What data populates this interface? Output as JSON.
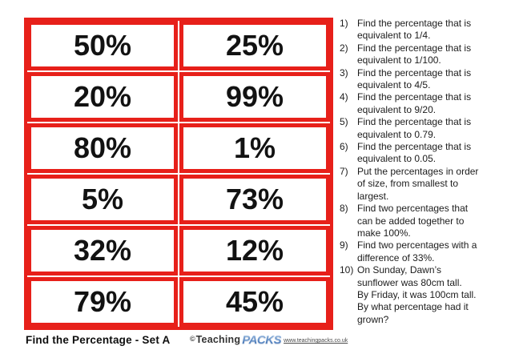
{
  "colors": {
    "card_border": "#e7201a",
    "card_text": "#121212",
    "logo_blue": "#3b6fb5"
  },
  "cards": {
    "labels": [
      "50%",
      "25%",
      "20%",
      "99%",
      "80%",
      "1%",
      "5%",
      "73%",
      "32%",
      "12%",
      "79%",
      "45%"
    ]
  },
  "questions": [
    {
      "num": "1)",
      "lines": [
        "Find the percentage that is",
        "equivalent to 1/4."
      ]
    },
    {
      "num": "2)",
      "lines": [
        "Find the percentage that is",
        "equivalent to 1/100."
      ]
    },
    {
      "num": "3)",
      "lines": [
        "Find the percentage that is",
        "equivalent to 4/5."
      ]
    },
    {
      "num": "4)",
      "lines": [
        "Find the percentage that is",
        "equivalent to 9/20."
      ]
    },
    {
      "num": "5)",
      "lines": [
        "Find the percentage that is",
        "equivalent to 0.79."
      ]
    },
    {
      "num": "6)",
      "lines": [
        "Find the percentage that is",
        "equivalent to 0.05."
      ]
    },
    {
      "num": "7)",
      "lines": [
        "Put the percentages in order",
        "of size, from smallest to",
        "largest."
      ]
    },
    {
      "num": "8)",
      "lines": [
        "Find two percentages that",
        "can be added together to",
        "make 100%."
      ]
    },
    {
      "num": "9)",
      "lines": [
        "Find two percentages with a",
        "difference of 33%."
      ]
    },
    {
      "num": "10)",
      "lines": [
        "On Sunday, Dawn’s",
        "sunflower was 80cm tall.",
        "By Friday, it was 100cm tall.",
        "By what percentage had it",
        "grown?"
      ]
    }
  ],
  "footer": {
    "title": "Find the Percentage - Set A",
    "copyright": "©",
    "brand_first": "Teaching",
    "brand_second": "Packs",
    "website": "www.teachingpacks.co.uk"
  }
}
